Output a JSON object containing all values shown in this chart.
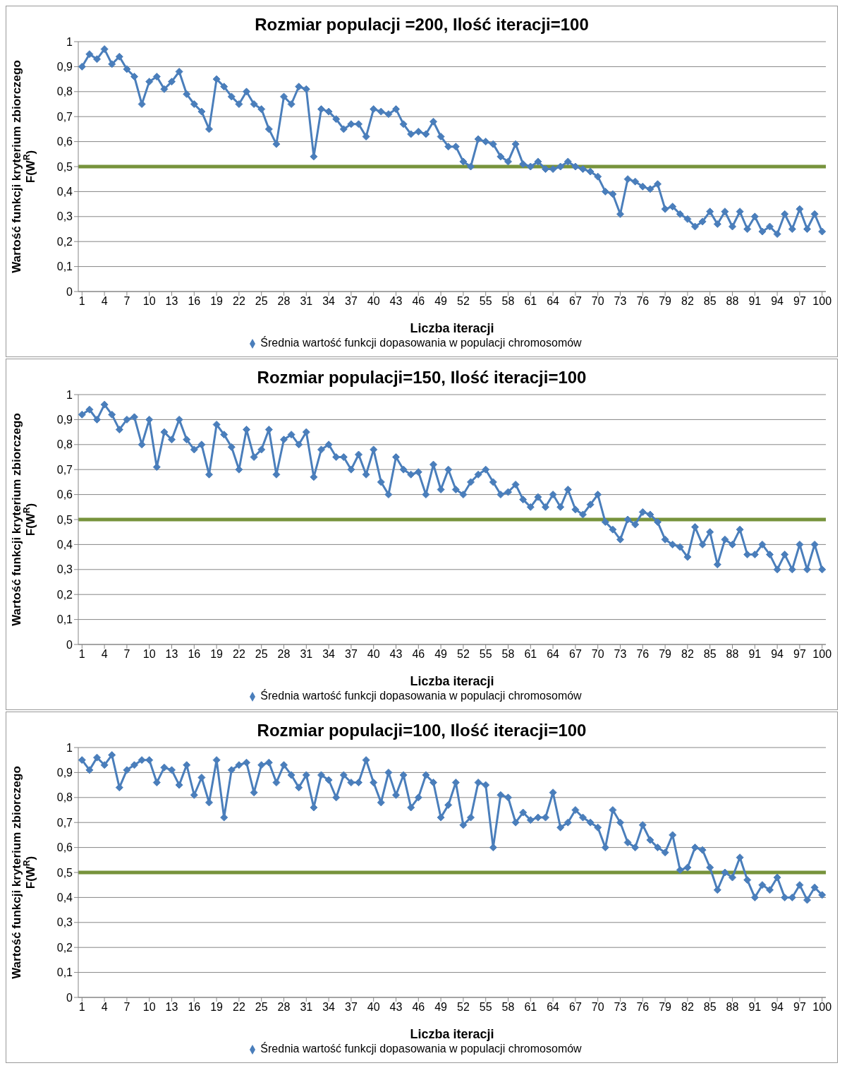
{
  "chart_data": [
    {
      "type": "line",
      "title": "Rozmiar populacji =200, Ilość iteracji=100",
      "xlabel": "Liczba iteracji",
      "ylabel": "Wartość funkcji kryterium zbiorczego F(W$^{R}$)",
      "x": [
        1,
        2,
        3,
        4,
        5,
        6,
        7,
        8,
        9,
        10,
        11,
        12,
        13,
        14,
        15,
        16,
        17,
        18,
        19,
        20,
        21,
        22,
        23,
        24,
        25,
        26,
        27,
        28,
        29,
        30,
        31,
        32,
        33,
        34,
        35,
        36,
        37,
        38,
        39,
        40,
        41,
        42,
        43,
        44,
        45,
        46,
        47,
        48,
        49,
        50,
        51,
        52,
        53,
        54,
        55,
        56,
        57,
        58,
        59,
        60,
        61,
        62,
        63,
        64,
        65,
        66,
        67,
        68,
        69,
        70,
        71,
        72,
        73,
        74,
        75,
        76,
        77,
        78,
        79,
        80,
        81,
        82,
        83,
        84,
        85,
        86,
        87,
        88,
        89,
        90,
        91,
        92,
        93,
        94,
        95,
        96,
        97,
        98,
        99,
        100
      ],
      "series": [
        {
          "name": "Średnia wartość funkcji dopasowania w populacji chromosomów",
          "color": "#4a7ebb",
          "values": [
            0.9,
            0.95,
            0.93,
            0.97,
            0.91,
            0.94,
            0.89,
            0.86,
            0.75,
            0.84,
            0.86,
            0.81,
            0.84,
            0.88,
            0.79,
            0.75,
            0.72,
            0.65,
            0.85,
            0.82,
            0.78,
            0.75,
            0.8,
            0.75,
            0.73,
            0.65,
            0.59,
            0.78,
            0.75,
            0.82,
            0.81,
            0.54,
            0.73,
            0.72,
            0.69,
            0.65,
            0.67,
            0.67,
            0.62,
            0.73,
            0.72,
            0.71,
            0.73,
            0.67,
            0.63,
            0.64,
            0.63,
            0.68,
            0.62,
            0.58,
            0.58,
            0.52,
            0.5,
            0.61,
            0.6,
            0.59,
            0.54,
            0.52,
            0.59,
            0.51,
            0.5,
            0.52,
            0.49,
            0.49,
            0.5,
            0.52,
            0.5,
            0.49,
            0.48,
            0.46,
            0.4,
            0.39,
            0.31,
            0.45,
            0.44,
            0.42,
            0.41,
            0.43,
            0.33,
            0.34,
            0.31,
            0.29,
            0.26,
            0.28,
            0.32,
            0.27,
            0.32,
            0.26,
            0.32,
            0.25,
            0.3,
            0.24,
            0.26,
            0.23,
            0.31,
            0.25,
            0.33,
            0.25,
            0.31,
            0.24
          ]
        }
      ],
      "xlim": [
        0.5,
        100.5
      ],
      "xticks": [
        1,
        4,
        7,
        10,
        13,
        16,
        19,
        22,
        25,
        28,
        31,
        34,
        37,
        40,
        43,
        46,
        49,
        52,
        55,
        58,
        61,
        64,
        67,
        70,
        73,
        76,
        79,
        82,
        85,
        88,
        91,
        94,
        97,
        100
      ],
      "ylim": [
        0,
        1
      ],
      "yticks": [
        {
          "value": 0,
          "label": "0"
        },
        {
          "value": 0.1,
          "label": "0,1"
        },
        {
          "value": 0.2,
          "label": "0,2"
        },
        {
          "value": 0.3,
          "label": "0,3"
        },
        {
          "value": 0.4,
          "label": "0,4"
        },
        {
          "value": 0.5,
          "label": "0,5"
        },
        {
          "value": 0.6,
          "label": "0,6"
        },
        {
          "value": 0.7,
          "label": "0,7"
        },
        {
          "value": 0.8,
          "label": "0,8"
        },
        {
          "value": 0.9,
          "label": "0,9"
        },
        {
          "value": 1,
          "label": "1"
        }
      ],
      "ref_lines": [
        {
          "axis": "y",
          "value": 0.5,
          "color": "#77933c"
        }
      ],
      "grid": "y",
      "legend": "bottom",
      "marker": "diamond",
      "line_style": "solid"
    },
    {
      "type": "line",
      "title": "Rozmiar populacji=150, Ilość iteracji=100",
      "xlabel": "Liczba iteracji",
      "ylabel": "Wartość funkcji kryterium zbiorczego F(W$^{R}$)",
      "x": [
        1,
        2,
        3,
        4,
        5,
        6,
        7,
        8,
        9,
        10,
        11,
        12,
        13,
        14,
        15,
        16,
        17,
        18,
        19,
        20,
        21,
        22,
        23,
        24,
        25,
        26,
        27,
        28,
        29,
        30,
        31,
        32,
        33,
        34,
        35,
        36,
        37,
        38,
        39,
        40,
        41,
        42,
        43,
        44,
        45,
        46,
        47,
        48,
        49,
        50,
        51,
        52,
        53,
        54,
        55,
        56,
        57,
        58,
        59,
        60,
        61,
        62,
        63,
        64,
        65,
        66,
        67,
        68,
        69,
        70,
        71,
        72,
        73,
        74,
        75,
        76,
        77,
        78,
        79,
        80,
        81,
        82,
        83,
        84,
        85,
        86,
        87,
        88,
        89,
        90,
        91,
        92,
        93,
        94,
        95,
        96,
        97,
        98,
        99,
        100
      ],
      "series": [
        {
          "name": "Średnia wartość funkcji dopasowania w populacji chromosomów",
          "color": "#4a7ebb",
          "values": [
            0.92,
            0.94,
            0.9,
            0.96,
            0.92,
            0.86,
            0.9,
            0.91,
            0.8,
            0.9,
            0.71,
            0.85,
            0.82,
            0.9,
            0.82,
            0.78,
            0.8,
            0.68,
            0.88,
            0.84,
            0.79,
            0.7,
            0.86,
            0.75,
            0.78,
            0.86,
            0.68,
            0.82,
            0.84,
            0.8,
            0.85,
            0.67,
            0.78,
            0.8,
            0.75,
            0.75,
            0.7,
            0.76,
            0.68,
            0.78,
            0.65,
            0.6,
            0.75,
            0.7,
            0.68,
            0.69,
            0.6,
            0.72,
            0.62,
            0.7,
            0.62,
            0.6,
            0.65,
            0.68,
            0.7,
            0.65,
            0.6,
            0.61,
            0.64,
            0.58,
            0.55,
            0.59,
            0.55,
            0.6,
            0.55,
            0.62,
            0.54,
            0.52,
            0.56,
            0.6,
            0.49,
            0.46,
            0.42,
            0.5,
            0.48,
            0.53,
            0.52,
            0.49,
            0.42,
            0.4,
            0.39,
            0.35,
            0.47,
            0.4,
            0.45,
            0.32,
            0.42,
            0.4,
            0.46,
            0.36,
            0.36,
            0.4,
            0.36,
            0.3,
            0.36,
            0.3,
            0.4,
            0.3,
            0.4,
            0.3
          ]
        }
      ],
      "xlim": [
        0.5,
        100.5
      ],
      "xticks": [
        1,
        4,
        7,
        10,
        13,
        16,
        19,
        22,
        25,
        28,
        31,
        34,
        37,
        40,
        43,
        46,
        49,
        52,
        55,
        58,
        61,
        64,
        67,
        70,
        73,
        76,
        79,
        82,
        85,
        88,
        91,
        94,
        97,
        100
      ],
      "ylim": [
        0,
        1
      ],
      "yticks": [
        {
          "value": 0,
          "label": "0"
        },
        {
          "value": 0.1,
          "label": "0,1"
        },
        {
          "value": 0.2,
          "label": "0,2"
        },
        {
          "value": 0.3,
          "label": "0,3"
        },
        {
          "value": 0.4,
          "label": "0,4"
        },
        {
          "value": 0.5,
          "label": "0,5"
        },
        {
          "value": 0.6,
          "label": "0,6"
        },
        {
          "value": 0.7,
          "label": "0,7"
        },
        {
          "value": 0.8,
          "label": "0,8"
        },
        {
          "value": 0.9,
          "label": "0,9"
        },
        {
          "value": 1,
          "label": "1"
        }
      ],
      "ref_lines": [
        {
          "axis": "y",
          "value": 0.5,
          "color": "#77933c"
        }
      ],
      "grid": "y",
      "legend": "bottom",
      "marker": "diamond",
      "line_style": "solid"
    },
    {
      "type": "line",
      "title": "Rozmiar populacji=100, Ilość iteracji=100",
      "xlabel": "Liczba iteracji",
      "ylabel": "Wartość funkcji kryterium zbiorczego F(W$^{R}$)",
      "x": [
        1,
        2,
        3,
        4,
        5,
        6,
        7,
        8,
        9,
        10,
        11,
        12,
        13,
        14,
        15,
        16,
        17,
        18,
        19,
        20,
        21,
        22,
        23,
        24,
        25,
        26,
        27,
        28,
        29,
        30,
        31,
        32,
        33,
        34,
        35,
        36,
        37,
        38,
        39,
        40,
        41,
        42,
        43,
        44,
        45,
        46,
        47,
        48,
        49,
        50,
        51,
        52,
        53,
        54,
        55,
        56,
        57,
        58,
        59,
        60,
        61,
        62,
        63,
        64,
        65,
        66,
        67,
        68,
        69,
        70,
        71,
        72,
        73,
        74,
        75,
        76,
        77,
        78,
        79,
        80,
        81,
        82,
        83,
        84,
        85,
        86,
        87,
        88,
        89,
        90,
        91,
        92,
        93,
        94,
        95,
        96,
        97,
        98,
        99,
        100
      ],
      "series": [
        {
          "name": "Średnia wartość funkcji dopasowania w populacji chromosomów",
          "color": "#4a7ebb",
          "values": [
            0.95,
            0.91,
            0.96,
            0.93,
            0.97,
            0.84,
            0.91,
            0.93,
            0.95,
            0.95,
            0.86,
            0.92,
            0.91,
            0.85,
            0.93,
            0.81,
            0.88,
            0.78,
            0.95,
            0.72,
            0.91,
            0.93,
            0.94,
            0.82,
            0.93,
            0.94,
            0.86,
            0.93,
            0.89,
            0.84,
            0.89,
            0.76,
            0.89,
            0.87,
            0.8,
            0.89,
            0.86,
            0.86,
            0.95,
            0.86,
            0.78,
            0.9,
            0.81,
            0.89,
            0.76,
            0.8,
            0.89,
            0.86,
            0.72,
            0.77,
            0.86,
            0.69,
            0.72,
            0.86,
            0.85,
            0.6,
            0.81,
            0.8,
            0.7,
            0.74,
            0.71,
            0.72,
            0.72,
            0.82,
            0.68,
            0.7,
            0.75,
            0.72,
            0.7,
            0.68,
            0.6,
            0.75,
            0.7,
            0.62,
            0.6,
            0.69,
            0.63,
            0.6,
            0.58,
            0.65,
            0.51,
            0.52,
            0.6,
            0.59,
            0.52,
            0.43,
            0.5,
            0.48,
            0.56,
            0.47,
            0.4,
            0.45,
            0.43,
            0.48,
            0.4,
            0.4,
            0.45,
            0.39,
            0.44,
            0.41
          ]
        }
      ],
      "xlim": [
        0.5,
        100.5
      ],
      "xticks": [
        1,
        4,
        7,
        10,
        13,
        16,
        19,
        22,
        25,
        28,
        31,
        34,
        37,
        40,
        43,
        46,
        49,
        52,
        55,
        58,
        61,
        64,
        67,
        70,
        73,
        76,
        79,
        82,
        85,
        88,
        91,
        94,
        97,
        100
      ],
      "ylim": [
        0,
        1
      ],
      "yticks": [
        {
          "value": 0,
          "label": "0"
        },
        {
          "value": 0.1,
          "label": "0,1"
        },
        {
          "value": 0.2,
          "label": "0,2"
        },
        {
          "value": 0.3,
          "label": "0,3"
        },
        {
          "value": 0.4,
          "label": "0,4"
        },
        {
          "value": 0.5,
          "label": "0,5"
        },
        {
          "value": 0.6,
          "label": "0,6"
        },
        {
          "value": 0.7,
          "label": "0,7"
        },
        {
          "value": 0.8,
          "label": "0,8"
        },
        {
          "value": 0.9,
          "label": "0,9"
        },
        {
          "value": 1,
          "label": "1"
        }
      ],
      "ref_lines": [
        {
          "axis": "y",
          "value": 0.5,
          "color": "#77933c"
        }
      ],
      "grid": "y",
      "legend": "bottom",
      "marker": "diamond",
      "line_style": "solid"
    }
  ]
}
